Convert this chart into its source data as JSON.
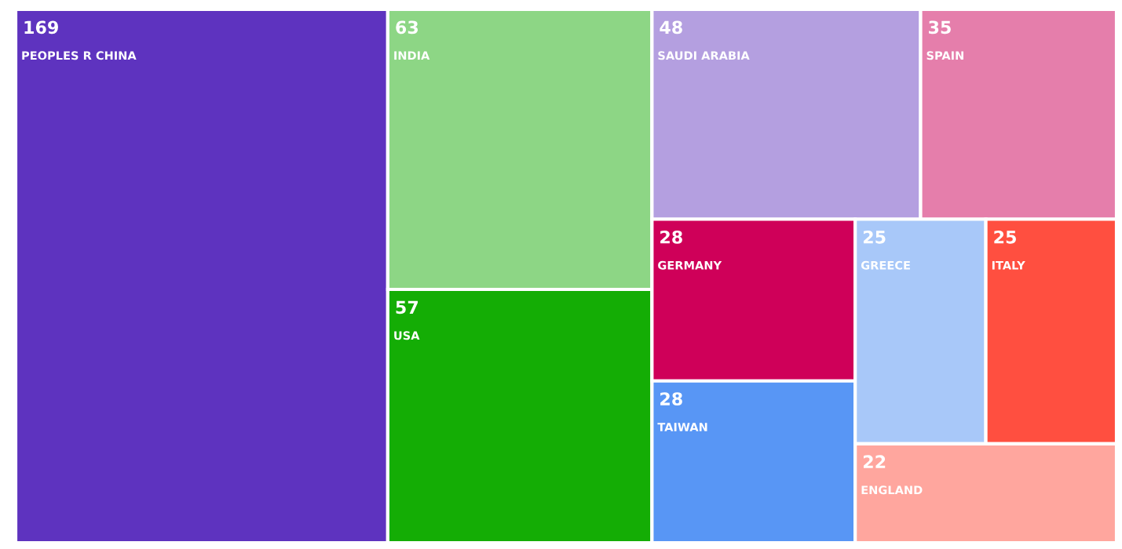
{
  "chart_data": {
    "type": "other",
    "categories": [
      "PEOPLES R CHINA",
      "INDIA",
      "USA",
      "SAUDI ARABIA",
      "SPAIN",
      "GERMANY",
      "TAIWAN",
      "GREECE",
      "ITALY",
      "ENGLAND"
    ],
    "values": [
      169,
      63,
      57,
      48,
      35,
      28,
      28,
      25,
      25,
      22
    ],
    "colors": [
      "#5e33bf",
      "#8dd685",
      "#14ad05",
      "#b49fe0",
      "#e57eab",
      "#cf0059",
      "#5896f5",
      "#a8c8f9",
      "#ff4f40",
      "#ffa69e"
    ],
    "data_labels": true
  }
}
